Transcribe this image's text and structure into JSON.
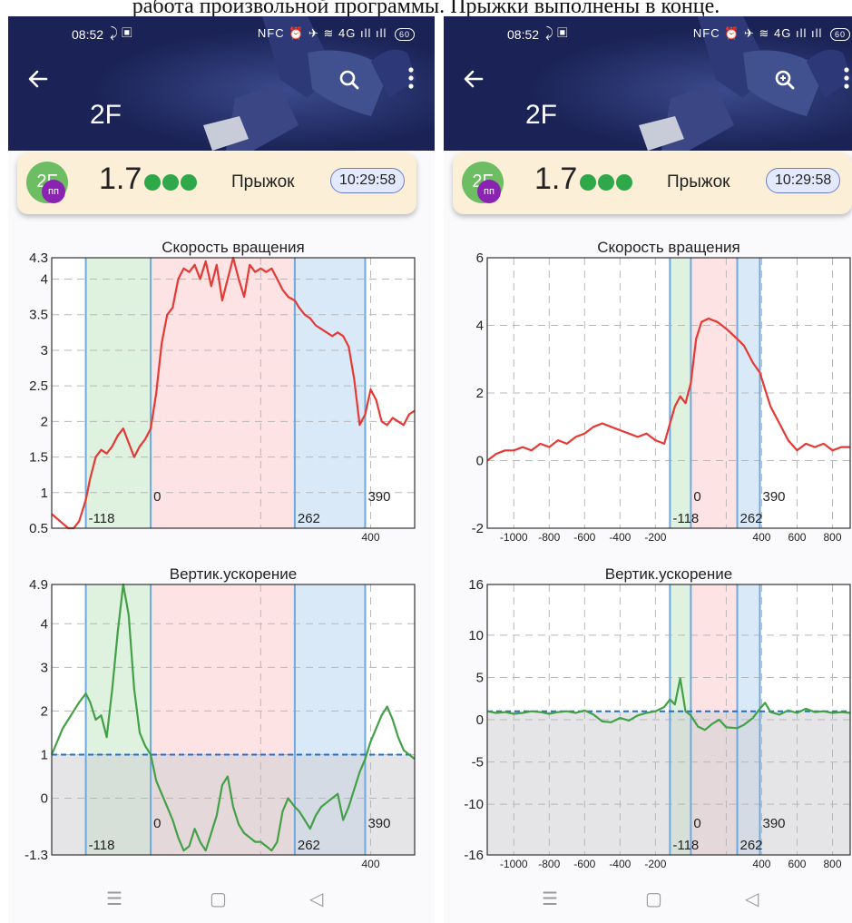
{
  "caption": "работа произвольной программы. Прыжки выполнены в конце.",
  "colors": {
    "header": "#1b2356",
    "card": "#fbefd8",
    "badge": "#6dbd62",
    "badge_sub": "#8a22b2",
    "dot": "#2fa84a",
    "rot_line": "#e53935",
    "acc_line": "#43a047",
    "green_zone": "#dcefdc",
    "red_zone": "#fde0e0",
    "blue_zone": "#d6e7f7",
    "baseline": "#1e6fd0",
    "shade": "#cfcfd3"
  },
  "phones": [
    {
      "status": {
        "time": "08:52",
        "icons_left": "⤸ ▣",
        "icons_right": "NFC ⏰ ✈ ≋ 4G ıll ıll",
        "battery": "60"
      },
      "header": {
        "back_icon": "arrow-left-icon",
        "search_icon": "search-icon",
        "more_icon": "more-vert-icon",
        "title": "2F"
      },
      "card": {
        "badge_main": "2F",
        "badge_sub": "пп",
        "score": "1.7",
        "label": "Прыжок",
        "time": "10:29:58"
      },
      "nav": {
        "menu_icon": "☰",
        "home_icon": "▢",
        "back_icon": "◁"
      }
    },
    {
      "status": {
        "time": "08:52",
        "icons_left": "⤸ ▣",
        "icons_right": "NFC ⏰ ✈ ≋ 4G ıll ıll",
        "battery": "60"
      },
      "header": {
        "back_icon": "arrow-left-icon",
        "search_icon": "search-zoom-icon",
        "more_icon": "more-vert-icon",
        "title": "2F"
      },
      "card": {
        "badge_main": "2F",
        "badge_sub": "пп",
        "score": "1.7",
        "label": "Прыжок",
        "time": "10:29:58"
      },
      "nav": {
        "menu_icon": "☰",
        "home_icon": "▢",
        "back_icon": "◁"
      }
    }
  ],
  "chart_data": [
    {
      "type": "line",
      "title": "Скорость вращения",
      "xlim": [
        -180,
        480
      ],
      "ylim": [
        0.5,
        4.3
      ],
      "yticks": [
        "0.5",
        "1",
        "1.5",
        "2",
        "2.5",
        "3",
        "3.5",
        "4",
        "4.3"
      ],
      "ytick_values": [
        0.5,
        1,
        1.5,
        2,
        2.5,
        3,
        3.5,
        4,
        4.3
      ],
      "xticks": [
        "400"
      ],
      "xtick_values": [
        400
      ],
      "grid_x": [
        200,
        400
      ],
      "zones": [
        {
          "from": -118,
          "to": 0,
          "color": "green"
        },
        {
          "from": 0,
          "to": 262,
          "color": "red"
        },
        {
          "from": 262,
          "to": 390,
          "color": "blue"
        }
      ],
      "markers": [
        {
          "x": -118,
          "label": "-118"
        },
        {
          "x": 0,
          "label": "0"
        },
        {
          "x": 262,
          "label": "262"
        },
        {
          "x": 390,
          "label": "390"
        }
      ],
      "series": [
        {
          "x": [
            -180,
            -165,
            -150,
            -140,
            -130,
            -118,
            -110,
            -100,
            -90,
            -80,
            -70,
            -60,
            -50,
            -40,
            -30,
            -20,
            -10,
            0,
            10,
            20,
            30,
            40,
            50,
            60,
            70,
            80,
            90,
            100,
            110,
            120,
            130,
            140,
            150,
            160,
            170,
            180,
            190,
            200,
            210,
            220,
            230,
            240,
            250,
            262,
            270,
            280,
            290,
            300,
            310,
            320,
            330,
            340,
            350,
            360,
            370,
            380,
            390,
            400,
            410,
            420,
            430,
            440,
            450,
            460,
            470,
            480
          ],
          "y": [
            0.7,
            0.6,
            0.5,
            0.5,
            0.6,
            0.9,
            1.2,
            1.5,
            1.6,
            1.55,
            1.65,
            1.8,
            1.9,
            1.7,
            1.5,
            1.65,
            1.75,
            1.9,
            2.4,
            3.1,
            3.5,
            3.6,
            4.0,
            4.15,
            4.1,
            4.2,
            4.0,
            4.25,
            3.9,
            4.2,
            3.7,
            4.0,
            4.3,
            4.0,
            3.75,
            4.2,
            4.1,
            4.15,
            4.1,
            4.15,
            4.0,
            3.85,
            3.75,
            3.7,
            3.6,
            3.5,
            3.45,
            3.35,
            3.3,
            3.25,
            3.2,
            3.25,
            3.2,
            3.05,
            2.6,
            1.95,
            2.1,
            2.45,
            2.3,
            2.0,
            1.95,
            2.05,
            2.0,
            1.95,
            2.1,
            2.15
          ]
        }
      ]
    },
    {
      "type": "line",
      "title": "Вертик.ускорение",
      "xlim": [
        -180,
        480
      ],
      "ylim": [
        -1.3,
        4.9
      ],
      "yticks": [
        "-1.3",
        "0",
        "1",
        "2",
        "3",
        "4",
        "4.9"
      ],
      "ytick_values": [
        -1.3,
        0,
        1,
        2,
        3,
        4,
        4.9
      ],
      "xticks": [
        "400"
      ],
      "xtick_values": [
        400
      ],
      "grid_x": [
        200,
        400
      ],
      "baseline": 1,
      "zones": [
        {
          "from": -118,
          "to": 0,
          "color": "green"
        },
        {
          "from": 0,
          "to": 262,
          "color": "red"
        },
        {
          "from": 262,
          "to": 390,
          "color": "blue"
        }
      ],
      "markers": [
        {
          "x": -118,
          "label": "-118"
        },
        {
          "x": 0,
          "label": "0"
        },
        {
          "x": 262,
          "label": "262"
        },
        {
          "x": 390,
          "label": "390"
        }
      ],
      "series": [
        {
          "x": [
            -180,
            -170,
            -160,
            -150,
            -140,
            -130,
            -118,
            -110,
            -100,
            -90,
            -80,
            -70,
            -60,
            -50,
            -40,
            -30,
            -20,
            -10,
            0,
            10,
            20,
            30,
            40,
            50,
            60,
            70,
            80,
            90,
            100,
            110,
            120,
            130,
            140,
            150,
            160,
            170,
            180,
            190,
            200,
            210,
            220,
            230,
            240,
            250,
            262,
            270,
            280,
            290,
            300,
            310,
            320,
            330,
            340,
            350,
            360,
            370,
            380,
            390,
            400,
            410,
            420,
            430,
            440,
            450,
            460,
            470,
            480
          ],
          "y": [
            1.0,
            1.3,
            1.6,
            1.8,
            2.0,
            2.2,
            2.4,
            2.2,
            1.8,
            1.9,
            1.4,
            2.5,
            3.8,
            4.9,
            4.2,
            2.5,
            1.5,
            1.2,
            1.0,
            0.4,
            0.1,
            -0.2,
            -0.5,
            -0.9,
            -1.2,
            -1.1,
            -0.7,
            -1.0,
            -1.2,
            -0.8,
            -0.4,
            0.3,
            0.5,
            -0.2,
            -0.6,
            -0.8,
            -0.9,
            -1.0,
            -1.0,
            -1.1,
            -1.2,
            -1.0,
            -0.3,
            0.0,
            -0.2,
            -0.3,
            -0.5,
            -0.7,
            -0.4,
            -0.2,
            -0.1,
            0.0,
            0.1,
            -0.5,
            -0.2,
            0.2,
            0.6,
            0.9,
            1.3,
            1.6,
            1.9,
            2.1,
            1.8,
            1.4,
            1.1,
            1.0,
            0.9
          ]
        }
      ]
    },
    {
      "type": "line",
      "title": "Скорость вращения",
      "xlim": [
        -1150,
        900
      ],
      "ylim": [
        -2,
        6
      ],
      "yticks": [
        "-2",
        "0",
        "2",
        "4",
        "6"
      ],
      "ytick_values": [
        -2,
        0,
        2,
        4,
        6
      ],
      "xticks": [
        "-1000",
        "-800",
        "-600",
        "-400",
        "-200",
        "400",
        "600",
        "800"
      ],
      "xtick_values": [
        -1000,
        -800,
        -600,
        -400,
        -200,
        400,
        600,
        800
      ],
      "grid_x": [
        -1000,
        -800,
        -600,
        -400,
        -200,
        200,
        400,
        600,
        800
      ],
      "zones": [
        {
          "from": -118,
          "to": 0,
          "color": "green"
        },
        {
          "from": 0,
          "to": 262,
          "color": "red"
        },
        {
          "from": 262,
          "to": 390,
          "color": "blue"
        }
      ],
      "markers": [
        {
          "x": -118,
          "label": "-118"
        },
        {
          "x": 0,
          "label": "0"
        },
        {
          "x": 262,
          "label": "262"
        },
        {
          "x": 390,
          "label": "390"
        }
      ],
      "series": [
        {
          "x": [
            -1150,
            -1100,
            -1050,
            -1000,
            -950,
            -900,
            -850,
            -800,
            -750,
            -700,
            -650,
            -600,
            -550,
            -500,
            -450,
            -400,
            -350,
            -300,
            -250,
            -200,
            -150,
            -118,
            -90,
            -60,
            -30,
            0,
            30,
            60,
            100,
            150,
            200,
            262,
            300,
            350,
            390,
            420,
            450,
            500,
            550,
            600,
            650,
            700,
            750,
            800,
            850,
            900
          ],
          "y": [
            0.0,
            0.2,
            0.3,
            0.3,
            0.4,
            0.3,
            0.5,
            0.4,
            0.6,
            0.5,
            0.7,
            0.8,
            1.0,
            1.1,
            1.0,
            0.9,
            0.8,
            0.7,
            0.8,
            0.6,
            0.5,
            1.1,
            1.6,
            1.9,
            1.7,
            2.3,
            3.6,
            4.1,
            4.2,
            4.1,
            3.9,
            3.6,
            3.4,
            2.9,
            2.6,
            2.1,
            1.6,
            1.1,
            0.6,
            0.3,
            0.5,
            0.4,
            0.5,
            0.3,
            0.4,
            0.4
          ]
        }
      ]
    },
    {
      "type": "line",
      "title": "Вертик.ускорение",
      "xlim": [
        -1150,
        900
      ],
      "ylim": [
        -16,
        16
      ],
      "yticks": [
        "-16",
        "-10",
        "-5",
        "0",
        "5",
        "10",
        "16"
      ],
      "ytick_values": [
        -16,
        -10,
        -5,
        0,
        5,
        10,
        16
      ],
      "xticks": [
        "-1000",
        "-800",
        "-600",
        "-400",
        "-200",
        "400",
        "600",
        "800"
      ],
      "xtick_values": [
        -1000,
        -800,
        -600,
        -400,
        -200,
        400,
        600,
        800
      ],
      "grid_x": [
        -1000,
        -800,
        -600,
        -400,
        -200,
        200,
        400,
        600,
        800
      ],
      "baseline": 1,
      "zones": [
        {
          "from": -118,
          "to": 0,
          "color": "green"
        },
        {
          "from": 0,
          "to": 262,
          "color": "red"
        },
        {
          "from": 262,
          "to": 390,
          "color": "blue"
        }
      ],
      "markers": [
        {
          "x": -118,
          "label": "-118"
        },
        {
          "x": 0,
          "label": "0"
        },
        {
          "x": 262,
          "label": "262"
        },
        {
          "x": 390,
          "label": "390"
        }
      ],
      "series": [
        {
          "x": [
            -1150,
            -1100,
            -1050,
            -1000,
            -950,
            -900,
            -850,
            -800,
            -750,
            -700,
            -650,
            -600,
            -550,
            -500,
            -450,
            -400,
            -350,
            -300,
            -250,
            -200,
            -150,
            -118,
            -90,
            -60,
            -30,
            0,
            40,
            80,
            120,
            160,
            200,
            262,
            300,
            350,
            390,
            420,
            450,
            500,
            550,
            600,
            650,
            700,
            750,
            800,
            850,
            900
          ],
          "y": [
            1.0,
            0.8,
            0.9,
            0.7,
            0.8,
            1.0,
            0.9,
            0.7,
            0.9,
            1.0,
            0.8,
            1.1,
            0.6,
            -0.2,
            -0.3,
            0.2,
            -0.1,
            0.5,
            0.8,
            1.0,
            1.5,
            2.4,
            1.8,
            4.9,
            1.0,
            0.5,
            -0.8,
            -1.2,
            -0.5,
            0.0,
            -0.9,
            -1.0,
            -0.6,
            0.2,
            1.3,
            2.0,
            0.9,
            0.6,
            1.1,
            0.8,
            1.3,
            0.9,
            1.0,
            0.8,
            0.9,
            0.8
          ]
        }
      ]
    }
  ]
}
